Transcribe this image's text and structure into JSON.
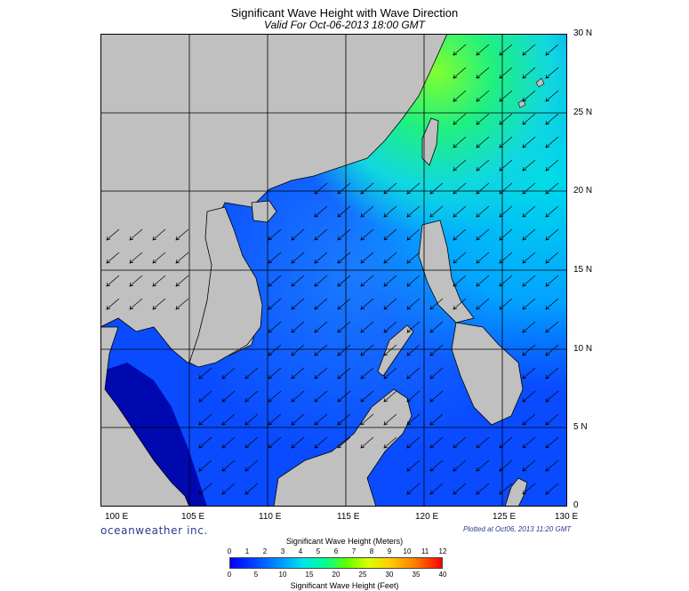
{
  "header": {
    "title": "Significant Wave Height with Wave Direction",
    "subtitle": "Valid For Oct-06-2013 18:00 GMT"
  },
  "map": {
    "lon_labels": [
      "100 E",
      "105 E",
      "110 E",
      "115 E",
      "120 E",
      "125 E",
      "130 E"
    ],
    "lat_labels": [
      "30 N",
      "25 N",
      "20 N",
      "15 N",
      "10 N",
      "5 N",
      "0"
    ],
    "extent": {
      "lon": [
        99,
        130
      ],
      "lat": [
        0,
        30
      ]
    },
    "colors": {
      "land": "#c0c0c0",
      "sea_base": "#0a4bff",
      "grid": "#000000"
    },
    "wave_direction": "arrows point generally southwest"
  },
  "footer": {
    "brand": "oceanweather inc.",
    "plotted": "Plotted at Oct06, 2013 11:20 GMT"
  },
  "colorbar": {
    "meters_title": "Significant Wave Height (Meters)",
    "feet_title": "Significant Wave Height (Feet)",
    "meters_ticks": [
      "0",
      "1",
      "2",
      "3",
      "4",
      "5",
      "6",
      "7",
      "8",
      "9",
      "10",
      "11",
      "12"
    ],
    "feet_ticks": [
      "0",
      "5",
      "10",
      "15",
      "20",
      "25",
      "30",
      "35",
      "40"
    ],
    "range_m": [
      0,
      12
    ],
    "range_ft": [
      0,
      40
    ]
  }
}
